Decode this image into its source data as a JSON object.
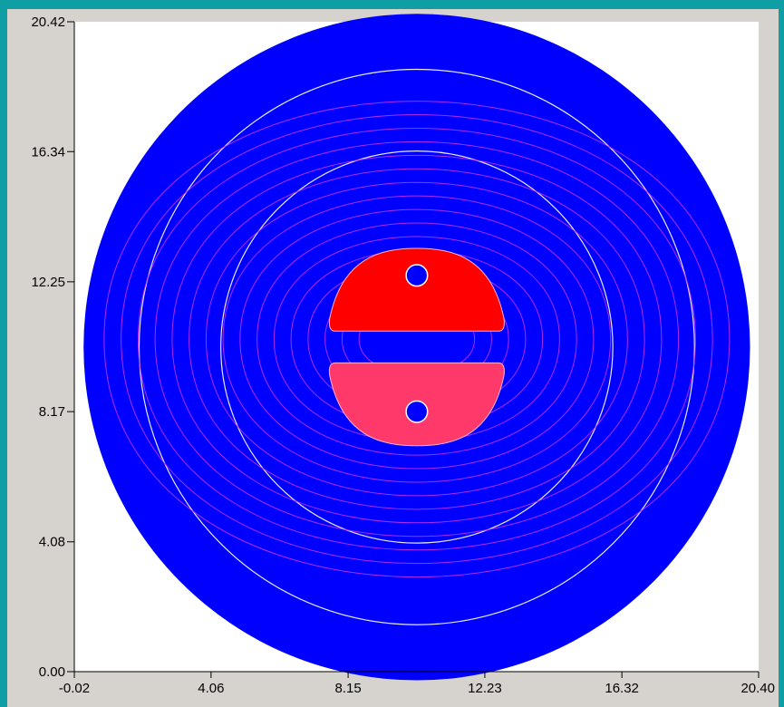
{
  "colors": {
    "page_background": "#0f9ea3",
    "frame_background": "#d6d3ce",
    "plot_background": "#ffffff",
    "domain_fill": "#0000ff",
    "positive_region": "#ff0000",
    "negative_region": "#ff3a6a",
    "contour_line": "#cc33ff",
    "outer_contour_line": "#e6e6ff",
    "conductor_fill": "#0000ff"
  },
  "chart_data": {
    "type": "contour",
    "title": "",
    "xlabel": "",
    "ylabel": "",
    "xlim": [
      -0.02,
      20.4
    ],
    "ylim": [
      0.0,
      20.42
    ],
    "x_ticks": [
      "-0.02",
      "4.06",
      "8.15",
      "12.23",
      "16.32",
      "20.40"
    ],
    "y_ticks": [
      "0.00",
      "4.08",
      "8.17",
      "12.25",
      "16.34",
      "20.42"
    ],
    "grid": false,
    "legend": "none",
    "domain": {
      "shape": "circle",
      "center": [
        10.2,
        10.2
      ],
      "radius": 10.2
    },
    "regions": [
      {
        "name": "upper lobe",
        "x_range": [
          7.6,
          12.8
        ],
        "y_range": [
          10.7,
          13.3
        ],
        "color": "positive"
      },
      {
        "name": "lower lobe",
        "x_range": [
          7.6,
          12.8
        ],
        "y_range": [
          7.1,
          9.7
        ],
        "color": "negative"
      }
    ],
    "conductors": [
      {
        "center": [
          10.2,
          12.45
        ],
        "radius": 0.3
      },
      {
        "center": [
          10.2,
          8.17
        ],
        "radius": 0.3
      }
    ],
    "contour_levels": 16,
    "outer_contour_radii": [
      6.0,
      8.5
    ]
  }
}
